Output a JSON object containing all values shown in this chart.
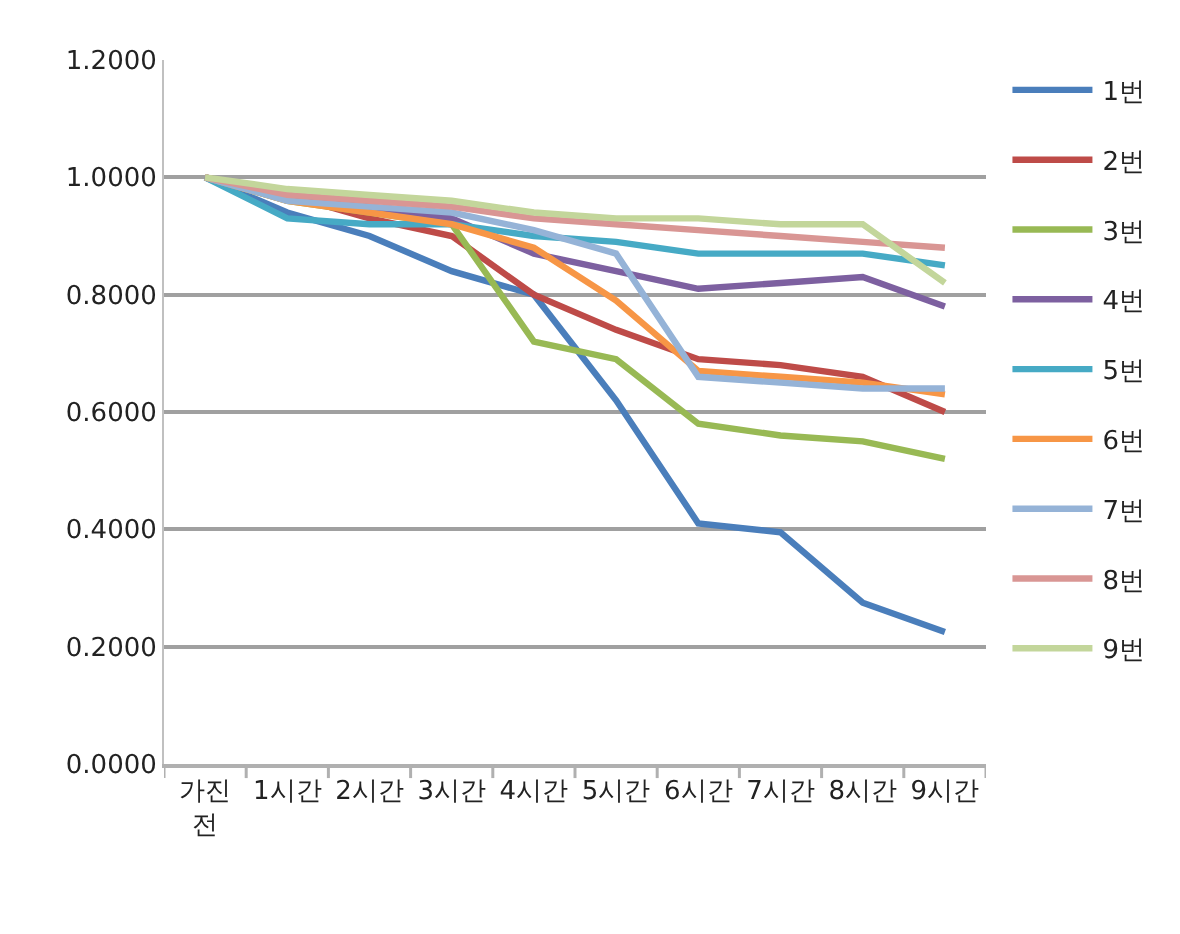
{
  "chart_data": {
    "type": "line",
    "categories": [
      "가진 전",
      "1시간",
      "2시간",
      "3시간",
      "4시간",
      "5시간",
      "6시간",
      "7시간",
      "8시간",
      "9시간"
    ],
    "series": [
      {
        "name": "1번",
        "color": "#4a7ebb",
        "values": [
          1.0,
          0.94,
          0.9,
          0.84,
          0.8,
          0.62,
          0.41,
          0.395,
          0.275,
          0.225
        ]
      },
      {
        "name": "2번",
        "color": "#be4b48",
        "values": [
          1.0,
          0.97,
          0.93,
          0.9,
          0.8,
          0.74,
          0.69,
          0.68,
          0.66,
          0.6
        ]
      },
      {
        "name": "3번",
        "color": "#98b954",
        "values": [
          1.0,
          0.96,
          0.94,
          0.92,
          0.72,
          0.69,
          0.58,
          0.56,
          0.55,
          0.52
        ]
      },
      {
        "name": "4번",
        "color": "#7d60a0",
        "values": [
          1.0,
          0.97,
          0.95,
          0.93,
          0.87,
          0.84,
          0.81,
          0.82,
          0.83,
          0.78
        ]
      },
      {
        "name": "5번",
        "color": "#46aac5",
        "values": [
          1.0,
          0.93,
          0.92,
          0.92,
          0.9,
          0.89,
          0.87,
          0.87,
          0.87,
          0.85
        ]
      },
      {
        "name": "6번",
        "color": "#f79646",
        "values": [
          1.0,
          0.96,
          0.94,
          0.92,
          0.88,
          0.79,
          0.67,
          0.66,
          0.65,
          0.63
        ]
      },
      {
        "name": "7번",
        "color": "#95b3d7",
        "values": [
          1.0,
          0.96,
          0.95,
          0.94,
          0.91,
          0.87,
          0.66,
          0.65,
          0.64,
          0.64
        ]
      },
      {
        "name": "8번",
        "color": "#d99694",
        "values": [
          1.0,
          0.97,
          0.96,
          0.95,
          0.93,
          0.92,
          0.91,
          0.9,
          0.89,
          0.88
        ]
      },
      {
        "name": "9번",
        "color": "#c3d69b",
        "values": [
          1.0,
          0.98,
          0.97,
          0.96,
          0.94,
          0.93,
          0.93,
          0.92,
          0.92,
          0.82
        ]
      }
    ],
    "ylim": [
      0,
      1.2
    ],
    "yticks": [
      {
        "value": 0,
        "label": "0.0000"
      },
      {
        "value": 0.2,
        "label": "0.2000"
      },
      {
        "value": 0.4,
        "label": "0.4000"
      },
      {
        "value": 0.6,
        "label": "0.6000"
      },
      {
        "value": 0.8,
        "label": "0.8000"
      },
      {
        "value": 1.0,
        "label": "1.0000"
      },
      {
        "value": 1.2,
        "label": "1.2000"
      }
    ],
    "grid": "y",
    "legend": "right",
    "marker": "none",
    "line_style": "solid"
  }
}
